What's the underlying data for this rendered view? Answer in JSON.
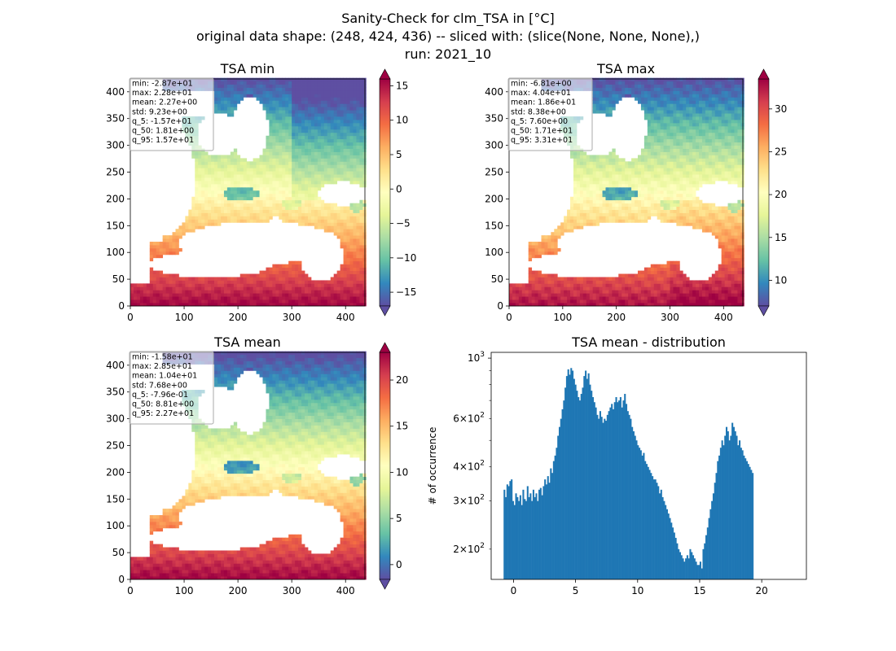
{
  "figure": {
    "suptitle_lines": [
      "Sanity-Check for clm_TSA in [°C]",
      "original data shape: (248, 424, 436) -- sliced with: (slice(None, None, None),)",
      "run: 2021_10"
    ]
  },
  "chart_data": [
    {
      "type": "heatmap",
      "title": "TSA min",
      "colormap": "Spectral_r",
      "xlim": [
        0,
        436
      ],
      "ylim": [
        0,
        424
      ],
      "xticks": [
        0,
        100,
        200,
        300,
        400
      ],
      "yticks": [
        0,
        50,
        100,
        150,
        200,
        250,
        300,
        350,
        400
      ],
      "colorbar": {
        "range": [
          -17,
          16
        ],
        "ticks": [
          -15,
          -10,
          -5,
          0,
          5,
          10,
          15
        ],
        "tick_labels": [
          "−15",
          "−10",
          "−5",
          "0",
          "5",
          "10",
          "15"
        ]
      },
      "stats": [
        "min: -2.87e+01",
        "max: 2.28e+01",
        "mean: 2.27e+00",
        "std: 9.23e+00",
        "q_5: -1.57e+01",
        "q_50: 1.81e+00",
        "q_95: 1.57e+01"
      ]
    },
    {
      "type": "heatmap",
      "title": "TSA max",
      "colormap": "Spectral_r",
      "xlim": [
        0,
        436
      ],
      "ylim": [
        0,
        424
      ],
      "xticks": [
        0,
        100,
        200,
        300,
        400
      ],
      "yticks": [
        0,
        50,
        100,
        150,
        200,
        250,
        300,
        350,
        400
      ],
      "colorbar": {
        "range": [
          7,
          33.5
        ],
        "ticks": [
          10,
          15,
          20,
          25,
          30
        ],
        "tick_labels": [
          "10",
          "15",
          "20",
          "25",
          "30"
        ]
      },
      "stats": [
        "min: -6.81e+00",
        "max: 4.04e+01",
        "mean: 1.86e+01",
        "std: 8.38e+00",
        "q_5: 7.60e+00",
        "q_50: 1.71e+01",
        "q_95: 3.31e+01"
      ]
    },
    {
      "type": "heatmap",
      "title": "TSA mean",
      "colormap": "Spectral_r",
      "xlim": [
        0,
        436
      ],
      "ylim": [
        0,
        424
      ],
      "xticks": [
        0,
        100,
        200,
        300,
        400
      ],
      "yticks": [
        0,
        50,
        100,
        150,
        200,
        250,
        300,
        350,
        400
      ],
      "colorbar": {
        "range": [
          -1.6,
          23
        ],
        "ticks": [
          0,
          5,
          10,
          15,
          20
        ],
        "tick_labels": [
          "0",
          "5",
          "10",
          "15",
          "20"
        ]
      },
      "stats": [
        "min: -1.58e+01",
        "max: 2.85e+01",
        "mean: 1.04e+01",
        "std: 7.68e+00",
        "q_5: -7.96e-01",
        "q_50: 8.81e+00",
        "q_95: 2.27e+01"
      ]
    },
    {
      "type": "bar",
      "title": "TSA mean - distribution",
      "ylabel": "# of occurrence",
      "yscale": "log",
      "bar_color": "#1f77b4",
      "xlim": [
        -1.8,
        23.6
      ],
      "ylim": [
        155,
        1050
      ],
      "xticks": [
        0,
        5,
        10,
        15,
        20
      ],
      "yticks_major": [
        {
          "value": 1000,
          "base": "10",
          "exp": "3"
        }
      ],
      "yticks_minor": [
        {
          "value": 200,
          "mant": "2",
          "base": "10",
          "exp": "2"
        },
        {
          "value": 300,
          "mant": "3",
          "base": "10",
          "exp": "2"
        },
        {
          "value": 400,
          "mant": "4",
          "base": "10",
          "exp": "2"
        },
        {
          "value": 600,
          "mant": "6",
          "base": "10",
          "exp": "2"
        }
      ],
      "bin_start": -0.8,
      "bin_width": 0.117,
      "counts": [
        330,
        310,
        345,
        340,
        355,
        360,
        300,
        290,
        320,
        310,
        300,
        315,
        290,
        330,
        305,
        300,
        340,
        310,
        320,
        300,
        330,
        310,
        320,
        300,
        330,
        335,
        315,
        340,
        360,
        345,
        370,
        350,
        395,
        380,
        420,
        440,
        470,
        520,
        560,
        600,
        650,
        700,
        780,
        860,
        910,
        870,
        920,
        900,
        840,
        800,
        760,
        720,
        700,
        740,
        780,
        860,
        900,
        840,
        880,
        800,
        760,
        720,
        690,
        660,
        620,
        600,
        640,
        610,
        580,
        600,
        590,
        620,
        640,
        660,
        680,
        650,
        690,
        720,
        690,
        700,
        720,
        660,
        700,
        740,
        680,
        640,
        620,
        600,
        560,
        540,
        520,
        500,
        480,
        470,
        460,
        440,
        450,
        420,
        410,
        400,
        390,
        380,
        370,
        360,
        360,
        350,
        340,
        320,
        330,
        310,
        300,
        290,
        280,
        270,
        260,
        250,
        240,
        230,
        220,
        210,
        200,
        195,
        190,
        185,
        180,
        185,
        190,
        185,
        200,
        195,
        190,
        185,
        180,
        175,
        175,
        180,
        170,
        200,
        210,
        225,
        240,
        260,
        280,
        300,
        320,
        350,
        380,
        420,
        440,
        470,
        500,
        480,
        520,
        560,
        540,
        500,
        520,
        580,
        560,
        540,
        520,
        480,
        500,
        470,
        460,
        440,
        430,
        420,
        410,
        400,
        390,
        380
      ]
    }
  ]
}
